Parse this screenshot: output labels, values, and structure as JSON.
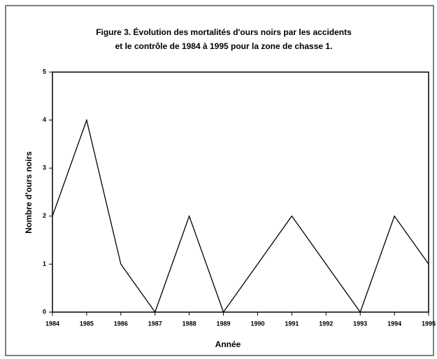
{
  "chart_data": {
    "type": "line",
    "title": [
      "Figure 3. Évolution des mortalités d'ours noirs par les accidents",
      "et le contrôle de 1984 à 1995 pour la zone de chasse 1."
    ],
    "x_label": "Année",
    "y_label": "Nombre d'ours noirs",
    "x": [
      1984,
      1985,
      1986,
      1987,
      1988,
      1989,
      1990,
      1991,
      1992,
      1993,
      1994,
      1995
    ],
    "series": [
      {
        "color": "#000000",
        "values": [
          2,
          4,
          1,
          0,
          2,
          0,
          1,
          2,
          1,
          0,
          2,
          1
        ]
      }
    ],
    "xlim": [
      1984,
      1995
    ],
    "xticks": [
      1984,
      1985,
      1986,
      1987,
      1988,
      1989,
      1990,
      1991,
      1992,
      1993,
      1994,
      1995
    ],
    "ylim": [
      0,
      5
    ],
    "yticks": [
      0,
      1,
      2,
      3,
      4,
      5
    ],
    "grid": false
  }
}
